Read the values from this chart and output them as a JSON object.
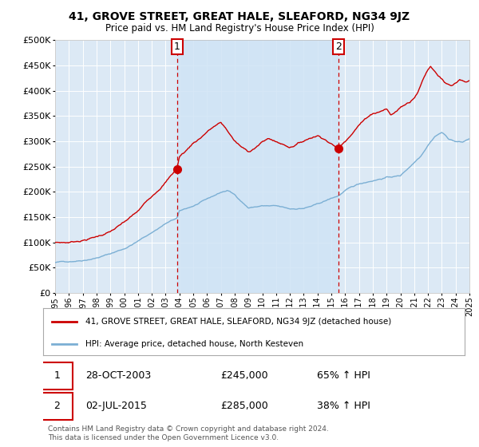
{
  "title": "41, GROVE STREET, GREAT HALE, SLEAFORD, NG34 9JZ",
  "subtitle": "Price paid vs. HM Land Registry's House Price Index (HPI)",
  "legend_line1": "41, GROVE STREET, GREAT HALE, SLEAFORD, NG34 9JZ (detached house)",
  "legend_line2": "HPI: Average price, detached house, North Kesteven",
  "sale1_date": "28-OCT-2003",
  "sale1_price": "£245,000",
  "sale1_hpi": "65% ↑ HPI",
  "sale2_date": "02-JUL-2015",
  "sale2_price": "£285,000",
  "sale2_hpi": "38% ↑ HPI",
  "footer": "Contains HM Land Registry data © Crown copyright and database right 2024.\nThis data is licensed under the Open Government Licence v3.0.",
  "sale1_year": 2003.83,
  "sale1_value": 245000,
  "sale2_year": 2015.5,
  "sale2_value": 285000,
  "red_line_color": "#cc0000",
  "blue_line_color": "#7bafd4",
  "shade_color": "#d0e4f5",
  "plot_bg_color": "#dce9f5",
  "grid_color": "#ffffff",
  "marker_box_color": "#cc0000",
  "xmin": 1995,
  "xmax": 2025,
  "ymin": 0,
  "ymax": 500000
}
